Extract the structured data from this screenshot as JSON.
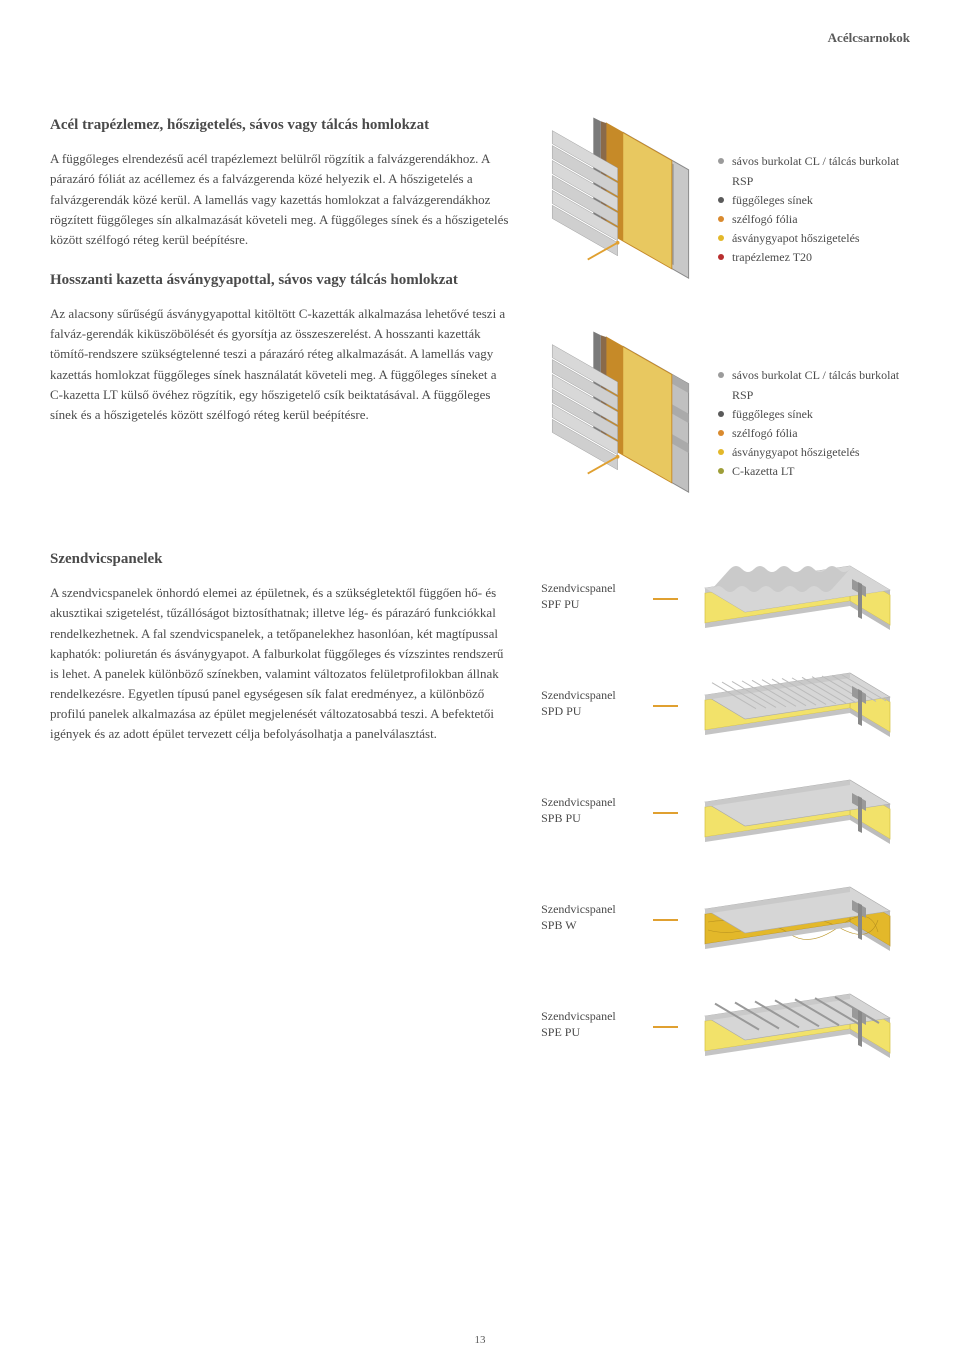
{
  "header": {
    "category": "Acélcsarnokok"
  },
  "page_number": "13",
  "sections": [
    {
      "title": "Acél trapézlemez, hőszigetelés, sávos vagy tálcás homlokzat",
      "body": "A függőleges elrendezésű acél trapézlemezt belülről rögzítik a falvázgerendákhoz. A párazáró fóliát az acéllemez és a falvázgerenda közé helyezik el. A hőszigetelés a falvázgerendák közé kerül. A lamellás vagy kazettás homlokzat a falvázgerendákhoz rögzített függőleges sín alkalmazását követeli meg. A függőleges sínek és a hőszigetelés között szélfogó réteg kerül beépítésre."
    },
    {
      "title": "Hosszanti kazetta ásványgyapottal, sávos vagy tálcás homlokzat",
      "body": "Az alacsony sűrűségű ásványgyapottal kitöltött C-kazetták alkalmazása lehetővé teszi a falváz-gerendák kiküszöbölését és gyorsítja az összeszerelést. A hosszanti kazetták tömítő-rendszere szükségtelenné teszi a párazáró réteg alkalmazását. A lamellás vagy kazettás homlokzat függőleges sínek használatát követeli meg. A függőleges síneket a C-kazetta LT külső övéhez rögzítik, egy hőszigetelő csík beiktatásával. A függőleges sínek és a hőszigetelés között szélfogó réteg kerül beépítésre."
    },
    {
      "title": "Szendvicspanelek",
      "body": "A szendvicspanelek önhordó elemei az épületnek, és a szükségletektől függően hő- és akusztikai szigetelést, tűzállóságot biztosíthatnak; illetve lég- és párazáró funkciókkal rendelkezhetnek. A fal szendvicspanelek, a tetőpanelekhez hasonlóan, két magtípussal kaphatók: poliuretán és ásványgyapot. A falburkolat függőleges és vízszintes rendszerű is lehet. A panelek különböző színekben, valamint változatos felületprofilokban állnak rendelkezésre. Egyetlen típusú panel egységesen sík falat eredményez, a különböző profilú panelek alkalmazása az épület megjelenését változatosabbá teszi. A befektetői igények és az adott épület tervezett célja befolyásolhatja a panelválasztást."
    }
  ],
  "legends": {
    "first": [
      {
        "text": "sávos burkolat CL / tálcás burkolat RSP",
        "color": "grey"
      },
      {
        "text": "függőleges sínek",
        "color": "dkgrey"
      },
      {
        "text": "szélfogó fólia",
        "color": "orange"
      },
      {
        "text": "ásványgyapot hőszigetelés",
        "color": "yellow"
      },
      {
        "text": "trapézlemez T20",
        "color": "red"
      }
    ],
    "second": [
      {
        "text": "sávos burkolat CL / tálcás burkolat RSP",
        "color": "grey"
      },
      {
        "text": "függőleges sínek",
        "color": "dkgrey"
      },
      {
        "text": "szélfogó fólia",
        "color": "orange"
      },
      {
        "text": "ásványgyapot hőszigetelés",
        "color": "yellow"
      },
      {
        "text": "C-kazetta LT",
        "color": "olive"
      }
    ]
  },
  "panels": [
    {
      "label1": "Szendvicspanel",
      "label2": "SPF PU",
      "type": "corrugated",
      "core": "#f2e26a"
    },
    {
      "label1": "Szendvicspanel",
      "label2": "SPD PU",
      "type": "ribbed",
      "core": "#f2e26a"
    },
    {
      "label1": "Szendvicspanel",
      "label2": "SPB PU",
      "type": "flat",
      "core": "#f2e26a"
    },
    {
      "label1": "Szendvicspanel",
      "label2": "SPB W",
      "type": "flat",
      "core": "#e3b82a"
    },
    {
      "label1": "Szendvicspanel",
      "label2": "SPE PU",
      "type": "grooved",
      "core": "#f2e26a"
    }
  ],
  "colors": {
    "insulation_dark": "#c68a28",
    "insulation_light": "#e8c860",
    "steel_light": "#d0d0d0",
    "steel_mid": "#b0b0b0",
    "steel_dark": "#7a7a7a",
    "foil": "#8a6a4a"
  }
}
